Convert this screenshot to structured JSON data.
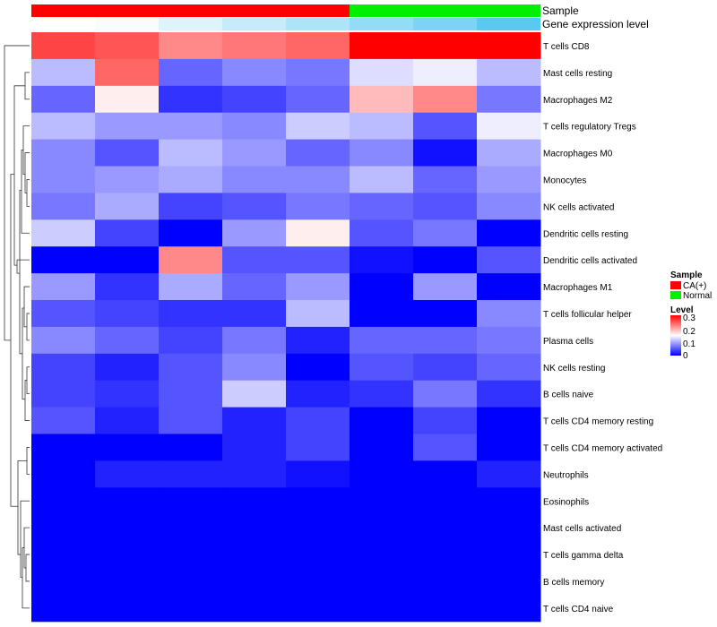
{
  "chart_data": {
    "type": "heatmap",
    "annotation_labels": {
      "sample": "Sample",
      "gene": "Gene expression level"
    },
    "sample_groups": [
      "CA(+)",
      "CA(+)",
      "CA(+)",
      "CA(+)",
      "CA(+)",
      "Normal",
      "Normal",
      "Normal"
    ],
    "gene_expression": [
      0.0,
      0.05,
      0.2,
      0.35,
      0.5,
      0.65,
      0.8,
      1.0
    ],
    "rows": [
      "T cells CD8",
      "Mast cells resting",
      "Macrophages M2",
      "T cells regulatory  Tregs",
      "Macrophages M0",
      "Monocytes",
      "NK cells activated",
      "Dendritic cells resting",
      "Dendritic cells activated",
      "Macrophages M1",
      "T cells follicular helper",
      "Plasma cells",
      "NK cells resting",
      "B cells naive",
      "T cells CD4 memory resting",
      "T cells CD4 memory activated",
      "Neutrophils",
      "Eosinophils",
      "Mast cells activated",
      "T cells gamma delta",
      "B cells memory",
      "T cells CD4 naive"
    ],
    "values": [
      [
        0.26,
        0.25,
        0.22,
        0.23,
        0.24,
        0.3,
        0.3,
        0.3
      ],
      [
        0.11,
        0.24,
        0.06,
        0.08,
        0.07,
        0.13,
        0.14,
        0.11
      ],
      [
        0.06,
        0.16,
        0.03,
        0.04,
        0.06,
        0.19,
        0.22,
        0.07
      ],
      [
        0.11,
        0.09,
        0.09,
        0.08,
        0.12,
        0.11,
        0.05,
        0.14
      ],
      [
        0.08,
        0.05,
        0.11,
        0.09,
        0.06,
        0.08,
        0.01,
        0.1
      ],
      [
        0.08,
        0.09,
        0.1,
        0.08,
        0.08,
        0.11,
        0.06,
        0.09
      ],
      [
        0.07,
        0.1,
        0.04,
        0.05,
        0.07,
        0.06,
        0.05,
        0.08
      ],
      [
        0.12,
        0.04,
        0.0,
        0.09,
        0.16,
        0.05,
        0.07,
        0.0
      ],
      [
        0.0,
        0.0,
        0.22,
        0.05,
        0.05,
        0.01,
        0.0,
        0.05
      ],
      [
        0.09,
        0.03,
        0.1,
        0.06,
        0.09,
        0.0,
        0.09,
        0.0
      ],
      [
        0.05,
        0.04,
        0.03,
        0.03,
        0.11,
        0.0,
        0.0,
        0.08
      ],
      [
        0.08,
        0.06,
        0.04,
        0.07,
        0.02,
        0.06,
        0.06,
        0.07
      ],
      [
        0.04,
        0.02,
        0.05,
        0.08,
        0.0,
        0.05,
        0.04,
        0.06
      ],
      [
        0.04,
        0.03,
        0.05,
        0.12,
        0.02,
        0.03,
        0.07,
        0.03
      ],
      [
        0.05,
        0.02,
        0.05,
        0.02,
        0.04,
        0.0,
        0.04,
        0.0
      ],
      [
        0.0,
        0.0,
        0.0,
        0.02,
        0.04,
        0.0,
        0.05,
        0.0
      ],
      [
        0.0,
        0.02,
        0.02,
        0.02,
        0.01,
        0.0,
        0.0,
        0.02
      ],
      [
        0.0,
        0.0,
        0.0,
        0.0,
        0.0,
        0.0,
        0.0,
        0.0
      ],
      [
        0.0,
        0.0,
        0.0,
        0.0,
        0.0,
        0.0,
        0.0,
        0.0
      ],
      [
        0.0,
        0.0,
        0.0,
        0.0,
        0.0,
        0.0,
        0.0,
        0.0
      ],
      [
        0.0,
        0.0,
        0.0,
        0.0,
        0.0,
        0.0,
        0.0,
        0.0
      ],
      [
        0.0,
        0.0,
        0.0,
        0.0,
        0.0,
        0.0,
        0.0,
        0.0
      ]
    ],
    "color_scale": {
      "min": 0,
      "mid": 0.15,
      "max": 0.3,
      "low": "#0000ff",
      "mid_color": "#ffffff",
      "high": "#ff0000"
    },
    "legend": {
      "sample_title": "Sample",
      "sample_items": [
        {
          "label": "CA(+)",
          "color": "#ff0000"
        },
        {
          "label": "Normal",
          "color": "#00ee00"
        }
      ],
      "level_title": "Level",
      "level_ticks": [
        "0.3",
        "0.2",
        "0.1",
        "0"
      ],
      "placement": "right"
    },
    "gene_colors": {
      "low": "#ffffff",
      "high": "#5bc8f0"
    },
    "dendrogram": "row clustering tree on left"
  }
}
